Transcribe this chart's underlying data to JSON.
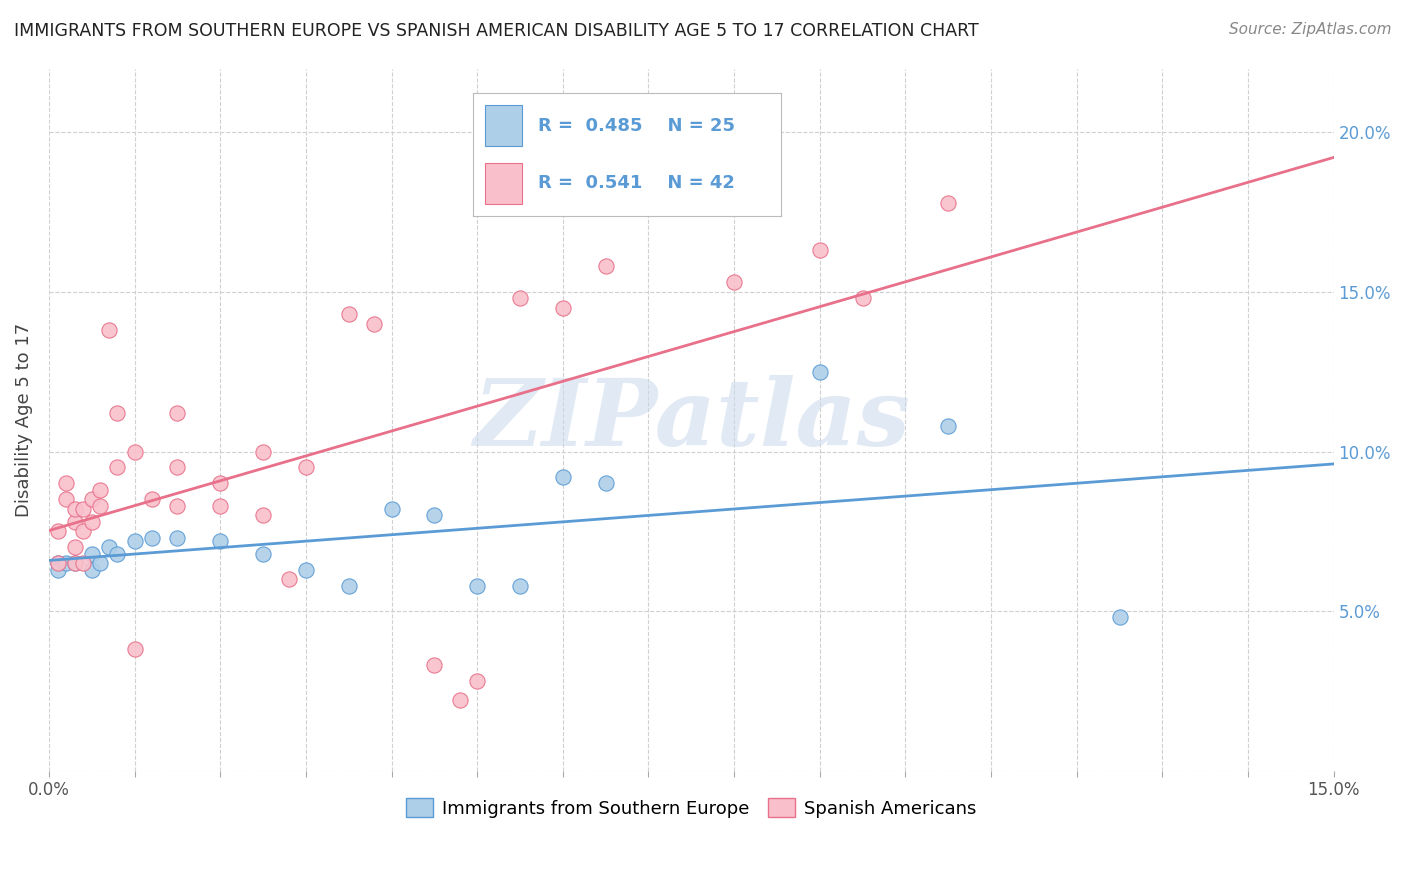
{
  "title": "IMMIGRANTS FROM SOUTHERN EUROPE VS SPANISH AMERICAN DISABILITY AGE 5 TO 17 CORRELATION CHART",
  "source": "Source: ZipAtlas.com",
  "ylabel": "Disability Age 5 to 17",
  "xlim": [
    0.0,
    0.15
  ],
  "ylim": [
    0.0,
    0.22
  ],
  "blue_R": 0.485,
  "blue_N": 25,
  "pink_R": 0.541,
  "pink_N": 42,
  "blue_color": "#aecfe8",
  "pink_color": "#f9c0cb",
  "blue_edge_color": "#5b9bd5",
  "pink_edge_color": "#e8708a",
  "blue_line_color": "#5b9bd5",
  "pink_line_color": "#e8708a",
  "blue_scatter": [
    [
      0.001,
      0.065
    ],
    [
      0.001,
      0.063
    ],
    [
      0.002,
      0.065
    ],
    [
      0.003,
      0.065
    ],
    [
      0.005,
      0.068
    ],
    [
      0.005,
      0.063
    ],
    [
      0.006,
      0.065
    ],
    [
      0.007,
      0.07
    ],
    [
      0.008,
      0.068
    ],
    [
      0.01,
      0.072
    ],
    [
      0.012,
      0.073
    ],
    [
      0.015,
      0.073
    ],
    [
      0.02,
      0.072
    ],
    [
      0.025,
      0.068
    ],
    [
      0.03,
      0.063
    ],
    [
      0.035,
      0.058
    ],
    [
      0.04,
      0.082
    ],
    [
      0.045,
      0.08
    ],
    [
      0.05,
      0.058
    ],
    [
      0.055,
      0.058
    ],
    [
      0.06,
      0.092
    ],
    [
      0.065,
      0.09
    ],
    [
      0.09,
      0.125
    ],
    [
      0.105,
      0.108
    ],
    [
      0.125,
      0.048
    ]
  ],
  "pink_scatter": [
    [
      0.001,
      0.065
    ],
    [
      0.001,
      0.075
    ],
    [
      0.002,
      0.085
    ],
    [
      0.002,
      0.09
    ],
    [
      0.003,
      0.078
    ],
    [
      0.003,
      0.082
    ],
    [
      0.003,
      0.07
    ],
    [
      0.003,
      0.065
    ],
    [
      0.004,
      0.082
    ],
    [
      0.004,
      0.075
    ],
    [
      0.004,
      0.065
    ],
    [
      0.005,
      0.085
    ],
    [
      0.005,
      0.078
    ],
    [
      0.006,
      0.088
    ],
    [
      0.006,
      0.083
    ],
    [
      0.007,
      0.138
    ],
    [
      0.008,
      0.112
    ],
    [
      0.008,
      0.095
    ],
    [
      0.01,
      0.1
    ],
    [
      0.01,
      0.038
    ],
    [
      0.012,
      0.085
    ],
    [
      0.015,
      0.112
    ],
    [
      0.015,
      0.095
    ],
    [
      0.015,
      0.083
    ],
    [
      0.02,
      0.09
    ],
    [
      0.02,
      0.083
    ],
    [
      0.025,
      0.1
    ],
    [
      0.025,
      0.08
    ],
    [
      0.028,
      0.06
    ],
    [
      0.03,
      0.095
    ],
    [
      0.035,
      0.143
    ],
    [
      0.038,
      0.14
    ],
    [
      0.045,
      0.033
    ],
    [
      0.048,
      0.022
    ],
    [
      0.05,
      0.028
    ],
    [
      0.055,
      0.148
    ],
    [
      0.06,
      0.145
    ],
    [
      0.065,
      0.158
    ],
    [
      0.08,
      0.153
    ],
    [
      0.09,
      0.163
    ],
    [
      0.095,
      0.148
    ],
    [
      0.105,
      0.178
    ]
  ],
  "watermark_text": "ZIPatlas",
  "watermark_color": "#c8d8ec",
  "background_color": "#ffffff",
  "grid_color": "#d0d0d0"
}
